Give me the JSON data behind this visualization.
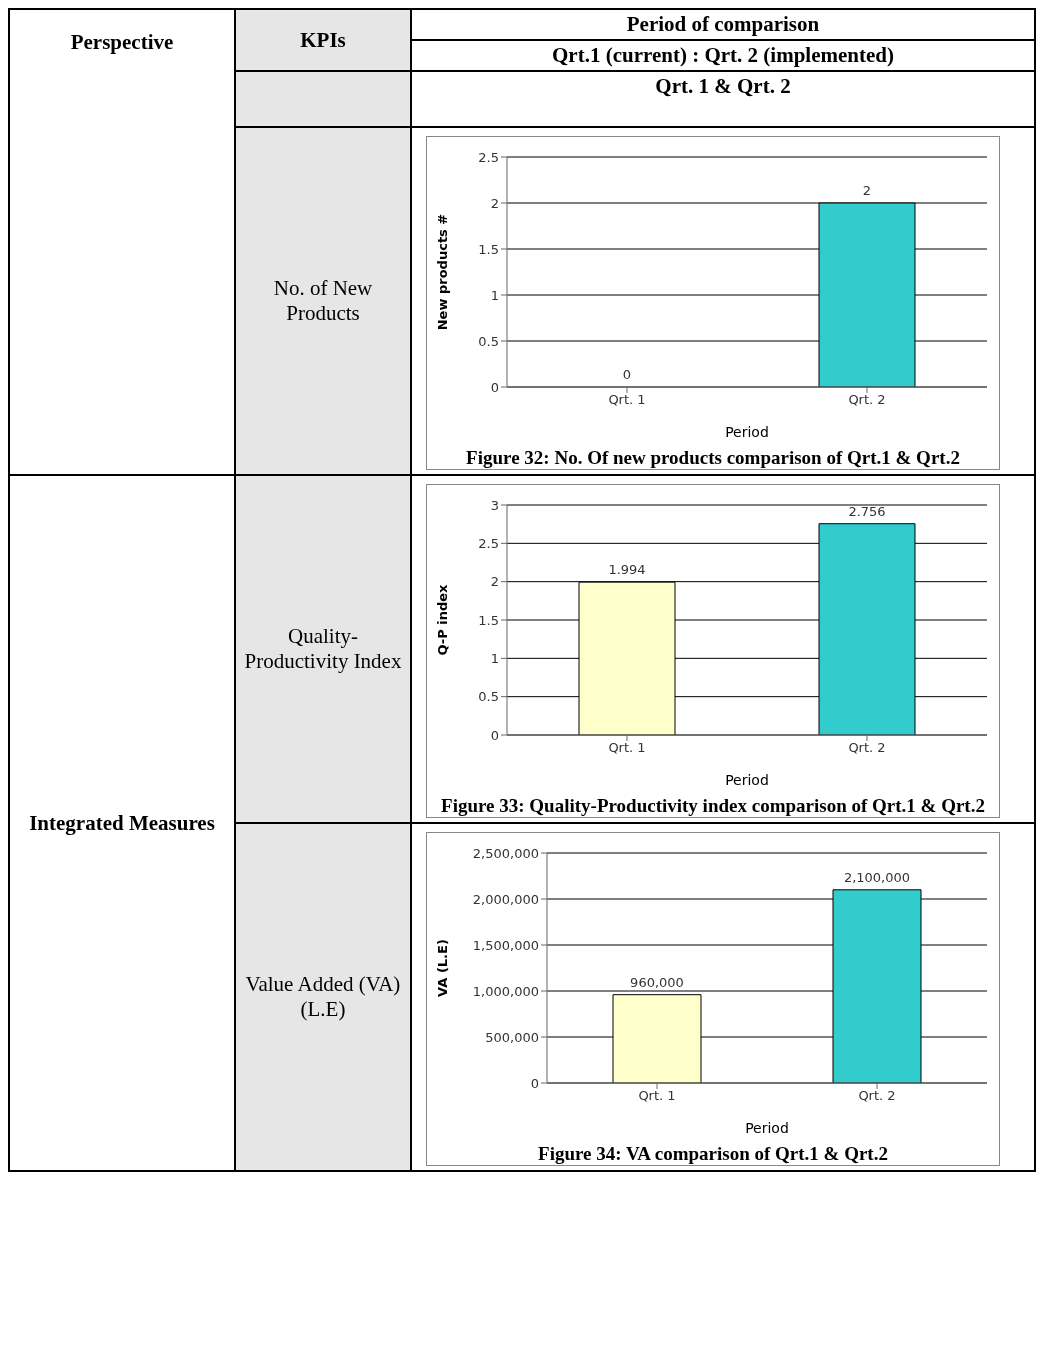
{
  "chart_data": [
    {
      "type": "other",
      "annotations": [
        "Perspective",
        "KPIs",
        "Period of comparison",
        "Qrt.1 (current) : Qrt. 2 (implemented)",
        "Qrt. 1 & Qrt. 2",
        "Integrated Measures"
      ]
    },
    {
      "type": "bar",
      "title": "Figure 32: No. Of new products comparison of Qrt.1 & Qrt.2",
      "subtitle": "No. of New Products",
      "xlabel": "Period",
      "ylabel": "New products #",
      "categories": [
        "Qrt. 1",
        "Qrt. 2"
      ],
      "values": [
        0,
        2
      ],
      "colors": [
        "#ffffcc",
        "#33cccc"
      ],
      "ylim": [
        0,
        2.5
      ],
      "yticks": [
        0,
        0.5,
        1,
        1.5,
        2,
        2.5
      ],
      "grid": "y",
      "data_labels": true
    },
    {
      "type": "bar",
      "title": "Figure 33: Quality-Productivity index comparison of Qrt.1 & Qrt.2",
      "subtitle": "Quality-Productivity Index",
      "xlabel": "Period",
      "ylabel": "Q-P index",
      "categories": [
        "Qrt. 1",
        "Qrt. 2"
      ],
      "values": [
        1.994,
        2.756
      ],
      "colors": [
        "#ffffcc",
        "#33cccc"
      ],
      "ylim": [
        0,
        3
      ],
      "yticks": [
        0,
        0.5,
        1,
        1.5,
        2,
        2.5,
        3
      ],
      "grid": "y",
      "data_labels": true
    },
    {
      "type": "bar",
      "title": "Figure 34: VA comparison of Qrt.1 & Qrt.2",
      "subtitle": "Value Added (VA) (L.E)",
      "xlabel": "Period",
      "ylabel": "VA (L.E)",
      "categories": [
        "Qrt. 1",
        "Qrt. 2"
      ],
      "values": [
        960000,
        2100000
      ],
      "value_labels": [
        "960,000",
        "2,100,000"
      ],
      "colors": [
        "#ffffcc",
        "#33cccc"
      ],
      "ylim": [
        0,
        2500000
      ],
      "yticks": [
        0,
        {
          "value": 500000,
          "label": "500,000"
        },
        {
          "value": 1000000,
          "label": "1,000,000"
        },
        {
          "value": 1500000,
          "label": "1,500,000"
        },
        {
          "value": 2000000,
          "label": "2,000,000"
        },
        {
          "value": 2500000,
          "label": "2,500,000"
        }
      ],
      "grid": "y"
    }
  ]
}
